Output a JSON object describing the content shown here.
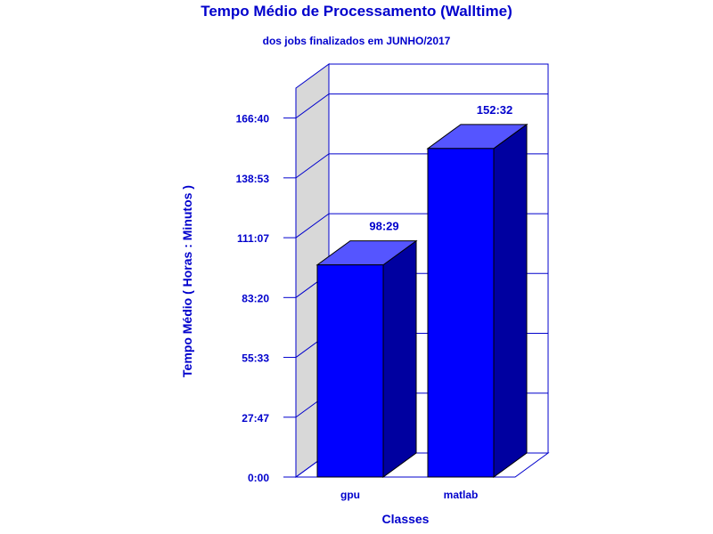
{
  "chart_data": {
    "type": "bar",
    "title": "Tempo Médio de Processamento (Walltime)",
    "subtitle": "dos jobs finalizados em JUNHO/2017",
    "xlabel": "Classes",
    "ylabel": "Tempo Médio ( Horas : Minutos )",
    "categories": [
      "gpu",
      "matlab"
    ],
    "values": [
      98.483,
      152.533
    ],
    "value_labels": [
      "98:29",
      "152:32"
    ],
    "yticks": [
      "0:00",
      "27:47",
      "55:33",
      "83:20",
      "111:07",
      "138:53",
      "166:40"
    ],
    "ylim": [
      0,
      180.56
    ],
    "grid": true,
    "style": "3d",
    "colors": {
      "bar_front": "#0000ff",
      "bar_side": "#0000a0",
      "bar_top": "#5555ff",
      "text": "#0000cc",
      "axis": "#0000cc",
      "back_wall": "#ffffff",
      "side_wall": "#d8d8d8"
    }
  }
}
